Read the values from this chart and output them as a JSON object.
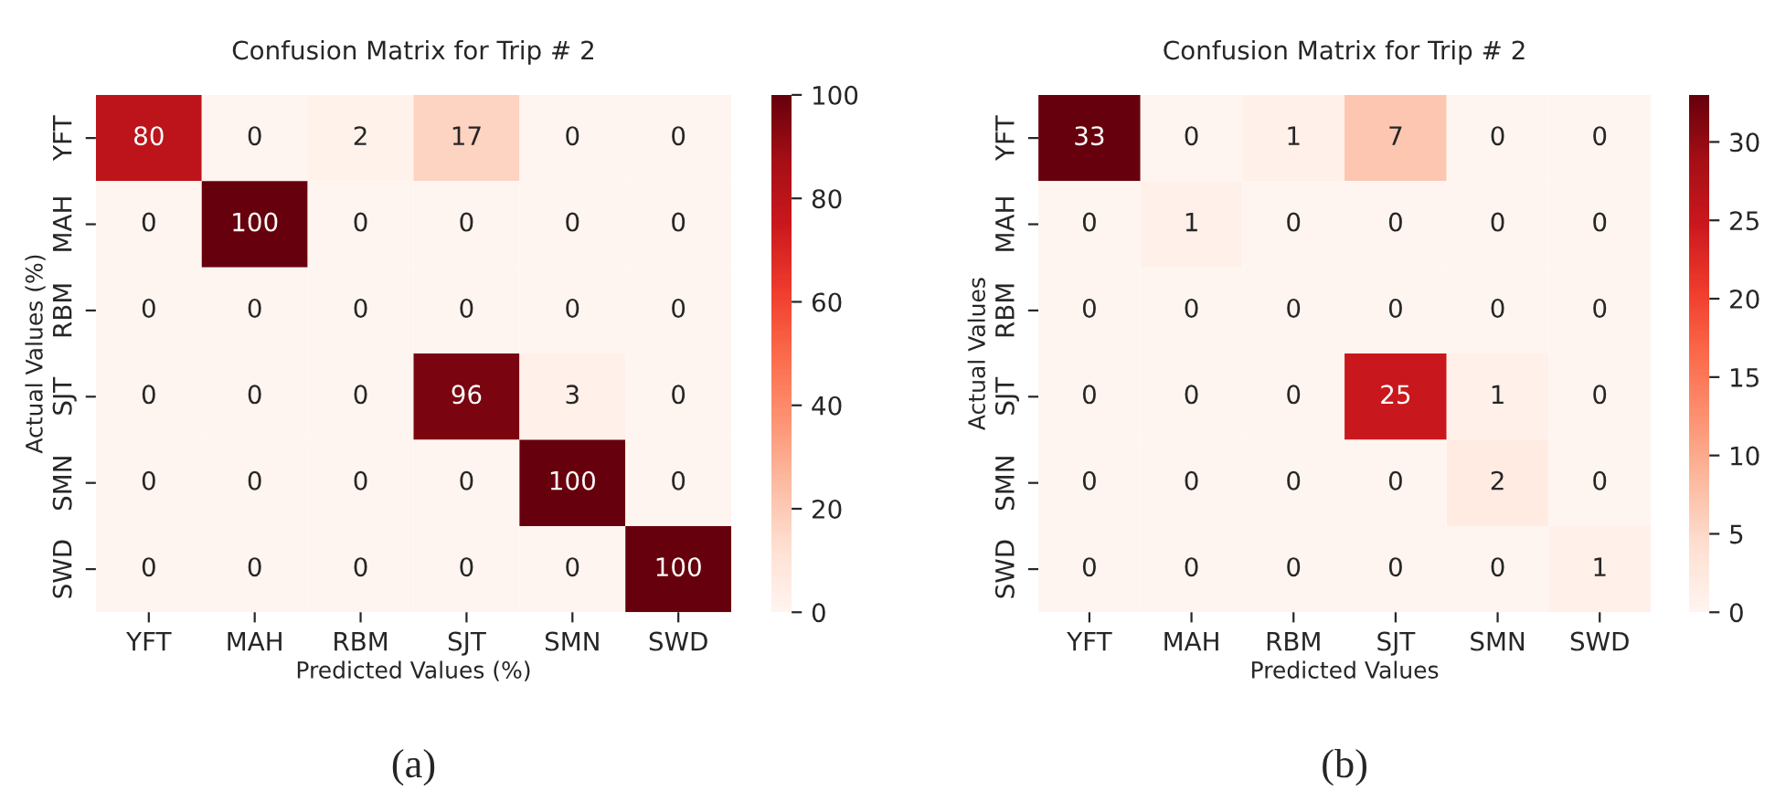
{
  "chart_data": [
    {
      "type": "heatmap",
      "title": "Confusion Matrix for Trip # 2",
      "xlabel": "Predicted Values (%)",
      "ylabel": "Actual Values (%)",
      "categories": [
        "YFT",
        "MAH",
        "RBM",
        "SJT",
        "SMN",
        "SWD"
      ],
      "y_categories": [
        "YFT",
        "MAH",
        "RBM",
        "SJT",
        "SMN",
        "SWD"
      ],
      "cells": [
        [
          80,
          0,
          2,
          17,
          0,
          0
        ],
        [
          0,
          100,
          0,
          0,
          0,
          0
        ],
        [
          0,
          0,
          0,
          0,
          0,
          0
        ],
        [
          0,
          0,
          0,
          96,
          3,
          0
        ],
        [
          0,
          0,
          0,
          0,
          100,
          0
        ],
        [
          0,
          0,
          0,
          0,
          0,
          100
        ]
      ],
      "data_labels": true,
      "clim": [
        0,
        100
      ],
      "cticks": [
        0,
        20,
        40,
        60,
        80,
        100
      ],
      "annotations": [
        "(a)"
      ]
    },
    {
      "type": "heatmap",
      "title": "Confusion Matrix for Trip # 2",
      "xlabel": "Predicted Values",
      "ylabel": "Actual Values",
      "categories": [
        "YFT",
        "MAH",
        "RBM",
        "SJT",
        "SMN",
        "SWD"
      ],
      "y_categories": [
        "YFT",
        "MAH",
        "RBM",
        "SJT",
        "SMN",
        "SWD"
      ],
      "cells": [
        [
          33,
          0,
          1,
          7,
          0,
          0
        ],
        [
          0,
          1,
          0,
          0,
          0,
          0
        ],
        [
          0,
          0,
          0,
          0,
          0,
          0
        ],
        [
          0,
          0,
          0,
          25,
          1,
          0
        ],
        [
          0,
          0,
          0,
          0,
          2,
          0
        ],
        [
          0,
          0,
          0,
          0,
          0,
          1
        ]
      ],
      "data_labels": true,
      "clim": [
        0,
        33
      ],
      "cticks": [
        0,
        5,
        10,
        15,
        20,
        25,
        30
      ],
      "annotations": [
        "(b)"
      ]
    }
  ]
}
